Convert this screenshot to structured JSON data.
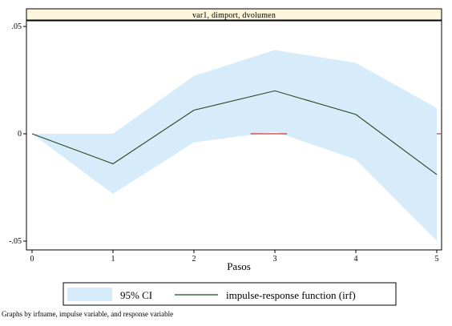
{
  "chart_data": {
    "type": "area",
    "panel_title": "var1, dimport, dvolumen",
    "xlabel": "Pasos",
    "ylabel": "",
    "x": [
      0,
      1,
      2,
      3,
      4,
      5
    ],
    "xlim": [
      0,
      5
    ],
    "ylim": [
      -0.05,
      0.05
    ],
    "x_ticks": [
      "0",
      "1",
      "2",
      "3",
      "4",
      "5"
    ],
    "y_ticks": [
      {
        "value": 0.05,
        "label": ".05"
      },
      {
        "value": 0,
        "label": "0"
      },
      {
        "value": -0.05,
        "label": "-.05"
      }
    ],
    "series": [
      {
        "name": "95% CI",
        "kind": "band",
        "upper": [
          0,
          0,
          0.027,
          0.039,
          0.033,
          0.012
        ],
        "lower": [
          0,
          -0.028,
          -0.004,
          0.001,
          -0.012,
          -0.05
        ]
      },
      {
        "name": "impulse-response function (irf)",
        "kind": "line",
        "values": [
          0,
          -0.014,
          0.011,
          0.02,
          0.009,
          -0.019
        ]
      }
    ],
    "reference_line": {
      "y": 0,
      "x_range": [
        2.7,
        3.15
      ]
    },
    "legend_position": "bottom",
    "grid": false,
    "colors": {
      "band": "#d6ecfa",
      "line": "#1f4a1f",
      "reference": "#cc0000",
      "panel_title_bg": "#fdf6dc"
    }
  },
  "footnote": "Graphs by irfname, impulse variable, and response variable"
}
